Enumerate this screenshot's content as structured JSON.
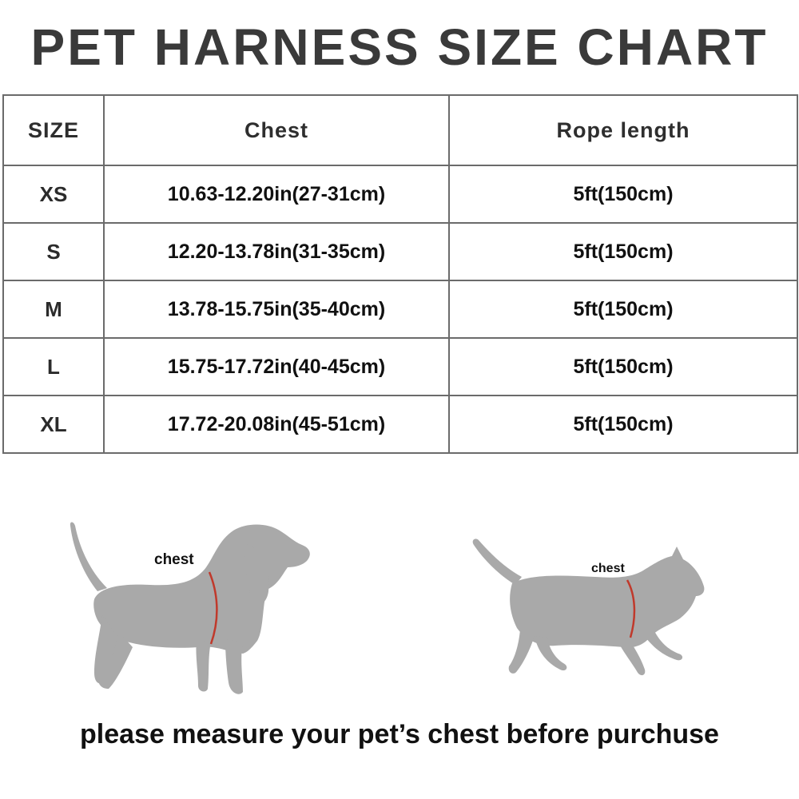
{
  "title": "PET HARNESS SIZE CHART",
  "table": {
    "headers": [
      "SIZE",
      "Chest",
      "Rope length"
    ],
    "rows": [
      {
        "size": "XS",
        "chest": "10.63-12.20in(27-31cm)",
        "rope": "5ft(150cm)"
      },
      {
        "size": "S",
        "chest": "12.20-13.78in(31-35cm)",
        "rope": "5ft(150cm)"
      },
      {
        "size": "M",
        "chest": "13.78-15.75in(35-40cm)",
        "rope": "5ft(150cm)"
      },
      {
        "size": "L",
        "chest": "15.75-17.72in(40-45cm)",
        "rope": "5ft(150cm)"
      },
      {
        "size": "XL",
        "chest": "17.72-20.08in(45-51cm)",
        "rope": "5ft(150cm)"
      }
    ]
  },
  "illustrations": {
    "dog_label": "chest",
    "cat_label": "chest",
    "silhouette_color": "#a9a9a9",
    "measure_line_color": "#c0392b"
  },
  "footer": "please measure your pet’s chest before purchuse"
}
